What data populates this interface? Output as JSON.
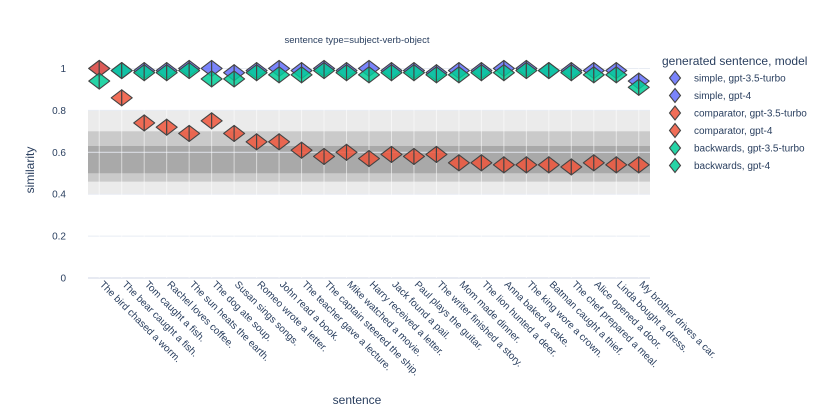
{
  "chart_data": {
    "type": "violin",
    "title": "sentence type=subject-verb-object",
    "xlabel": "sentence",
    "ylabel": "similarity",
    "ylim": [
      0,
      1.05
    ],
    "yticks": [
      0,
      0.2,
      0.4,
      0.6,
      0.8,
      1
    ],
    "grid": true,
    "legend_title": "generated sentence, model",
    "legend_position": "right",
    "reference_bands": [
      {
        "from": 0.4,
        "to": 0.8,
        "shade": "light"
      },
      {
        "from": 0.46,
        "to": 0.7,
        "shade": "mid"
      },
      {
        "from": 0.5,
        "to": 0.63,
        "shade": "dark"
      }
    ],
    "reference_line": 0.6,
    "categories": [
      "The bird chased a worm.",
      "The bear caught a fish.",
      "Tom caught a fish.",
      "Rachel loves coffee.",
      "The sun heats the earth.",
      "The dog ate soup.",
      "Susan sings songs.",
      "Romeo wrote a letter.",
      "John read a book.",
      "The teacher gave a lecture.",
      "The captain steered the ship.",
      "Mike watched a movie.",
      "Harry received a letter.",
      "Jack found a pail.",
      "Paul plays the guitar.",
      "The writer finished a story.",
      "Mom made dinner.",
      "The lion hunted a deer.",
      "Anna baked a cake.",
      "The king wore a crown.",
      "Batman caught a thief.",
      "The chef prepared a meal.",
      "Alice opened a door.",
      "Linda bought a dress.",
      "My brother drives a car."
    ],
    "series": [
      {
        "name": "simple, gpt-3.5-turbo",
        "color": "#636efa",
        "side": "negative",
        "values": [
          1.0,
          0.99,
          0.99,
          0.99,
          1.0,
          1.0,
          0.98,
          0.99,
          1.0,
          0.99,
          1.0,
          0.99,
          1.0,
          0.99,
          0.99,
          0.98,
          0.99,
          0.99,
          1.0,
          1.0,
          0.99,
          0.99,
          0.99,
          0.99,
          0.94
        ]
      },
      {
        "name": "simple, gpt-4",
        "color": "#636efa",
        "side": "positive",
        "values": [
          1.0,
          0.99,
          0.99,
          0.99,
          1.0,
          1.0,
          0.98,
          0.99,
          1.0,
          0.99,
          1.0,
          0.99,
          1.0,
          0.99,
          0.99,
          0.98,
          0.99,
          0.99,
          1.0,
          1.0,
          0.99,
          0.99,
          0.99,
          0.99,
          0.94
        ]
      },
      {
        "name": "comparator, gpt-3.5-turbo",
        "color": "#ef553b",
        "side": "negative",
        "values": [
          1.0,
          0.86,
          0.74,
          0.72,
          0.69,
          0.75,
          0.69,
          0.65,
          0.65,
          0.61,
          0.58,
          0.6,
          0.57,
          0.59,
          0.58,
          0.59,
          0.55,
          0.55,
          0.54,
          0.54,
          0.54,
          0.53,
          0.55,
          0.54,
          0.54
        ]
      },
      {
        "name": "comparator, gpt-4",
        "color": "#ef553b",
        "side": "positive",
        "values": [
          1.0,
          0.86,
          0.74,
          0.72,
          0.69,
          0.75,
          0.69,
          0.65,
          0.65,
          0.61,
          0.58,
          0.6,
          0.57,
          0.59,
          0.58,
          0.59,
          0.55,
          0.55,
          0.54,
          0.54,
          0.54,
          0.53,
          0.55,
          0.54,
          0.54
        ]
      },
      {
        "name": "backwards, gpt-3.5-turbo",
        "color": "#00cc96",
        "side": "negative",
        "values": [
          0.94,
          0.99,
          0.98,
          0.98,
          0.99,
          0.95,
          0.95,
          0.98,
          0.97,
          0.97,
          0.99,
          0.98,
          0.97,
          0.98,
          0.98,
          0.97,
          0.97,
          0.98,
          0.98,
          0.99,
          0.99,
          0.98,
          0.97,
          0.97,
          0.91
        ]
      },
      {
        "name": "backwards, gpt-4",
        "color": "#00cc96",
        "side": "positive",
        "values": [
          0.94,
          0.99,
          0.98,
          0.98,
          0.99,
          0.95,
          0.95,
          0.98,
          0.97,
          0.97,
          0.99,
          0.98,
          0.97,
          0.98,
          0.98,
          0.97,
          0.97,
          0.98,
          0.98,
          0.99,
          0.99,
          0.98,
          0.97,
          0.97,
          0.91
        ]
      }
    ]
  }
}
